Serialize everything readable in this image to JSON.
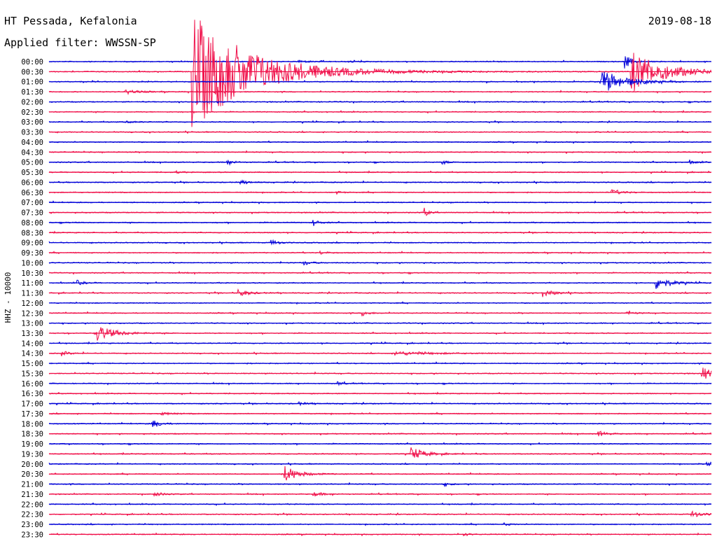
{
  "header": {
    "station": "HT Pessada, Kefalonia",
    "filter": "Applied filter: WWSSN-SP",
    "date": "2019-08-18"
  },
  "side_label": "HHZ - 10000",
  "chart_data": {
    "type": "helicorder",
    "row_labels": [
      "00:00",
      "00:30",
      "01:00",
      "01:30",
      "02:00",
      "02:30",
      "03:00",
      "03:30",
      "04:00",
      "04:30",
      "05:00",
      "05:30",
      "06:00",
      "06:30",
      "07:00",
      "07:30",
      "08:00",
      "08:30",
      "09:00",
      "09:30",
      "10:00",
      "10:30",
      "11:00",
      "11:30",
      "12:00",
      "12:30",
      "13:00",
      "13:30",
      "14:00",
      "14:30",
      "15:00",
      "15:30",
      "16:00",
      "16:30",
      "17:00",
      "17:30",
      "18:00",
      "18:30",
      "19:00",
      "19:30",
      "20:00",
      "20:30",
      "21:00",
      "21:30",
      "22:00",
      "22:30",
      "23:00",
      "23:30"
    ],
    "row_colors": [
      "#0000d8",
      "#f0104a"
    ],
    "events": [
      {
        "row": 0,
        "minute": 11.3,
        "amplitude": 0.25,
        "duration": 0.8
      },
      {
        "row": 0,
        "minute": 13.6,
        "amplitude": 0.15,
        "duration": 0.6
      },
      {
        "row": 0,
        "minute": 26.1,
        "amplitude": 1.4,
        "duration": 0.5
      },
      {
        "row": 1,
        "minute": 6.5,
        "amplitude": 12.0,
        "duration": 4.5
      },
      {
        "row": 1,
        "minute": 26.4,
        "amplitude": 4.2,
        "duration": 2.5
      },
      {
        "row": 2,
        "minute": 25.0,
        "amplitude": 2.5,
        "duration": 1.8
      },
      {
        "row": 3,
        "minute": 3.5,
        "amplitude": 0.35,
        "duration": 1.0
      },
      {
        "row": 3,
        "minute": 7.5,
        "amplitude": 0.12,
        "duration": 0.5
      },
      {
        "row": 6,
        "minute": 3.5,
        "amplitude": 0.15,
        "duration": 0.8
      },
      {
        "row": 10,
        "minute": 8.1,
        "amplitude": 0.45,
        "duration": 0.5
      },
      {
        "row": 10,
        "minute": 17.8,
        "amplitude": 0.35,
        "duration": 0.5
      },
      {
        "row": 10,
        "minute": 29.0,
        "amplitude": 0.35,
        "duration": 0.5
      },
      {
        "row": 11,
        "minute": 5.7,
        "amplitude": 0.3,
        "duration": 0.4
      },
      {
        "row": 12,
        "minute": 8.7,
        "amplitude": 0.35,
        "duration": 0.6
      },
      {
        "row": 13,
        "minute": 13.0,
        "amplitude": 0.3,
        "duration": 0.4
      },
      {
        "row": 13,
        "minute": 25.5,
        "amplitude": 0.5,
        "duration": 0.8
      },
      {
        "row": 15,
        "minute": 17.0,
        "amplitude": 0.9,
        "duration": 0.3
      },
      {
        "row": 16,
        "minute": 12.0,
        "amplitude": 0.6,
        "duration": 0.4
      },
      {
        "row": 18,
        "minute": 10.1,
        "amplitude": 0.6,
        "duration": 0.5
      },
      {
        "row": 19,
        "minute": 12.3,
        "amplitude": 0.3,
        "duration": 0.5
      },
      {
        "row": 20,
        "minute": 11.5,
        "amplitude": 0.45,
        "duration": 0.6
      },
      {
        "row": 22,
        "minute": 1.3,
        "amplitude": 0.45,
        "duration": 0.5
      },
      {
        "row": 22,
        "minute": 27.5,
        "amplitude": 1.4,
        "duration": 1.0
      },
      {
        "row": 23,
        "minute": 8.6,
        "amplitude": 0.7,
        "duration": 0.8
      },
      {
        "row": 23,
        "minute": 22.4,
        "amplitude": 0.75,
        "duration": 0.8
      },
      {
        "row": 25,
        "minute": 14.2,
        "amplitude": 0.5,
        "duration": 0.5
      },
      {
        "row": 25,
        "minute": 26.2,
        "amplitude": 0.3,
        "duration": 0.6
      },
      {
        "row": 27,
        "minute": 2.2,
        "amplitude": 1.6,
        "duration": 1.3
      },
      {
        "row": 29,
        "minute": 0.6,
        "amplitude": 0.5,
        "duration": 0.5
      },
      {
        "row": 29,
        "minute": 15.7,
        "amplitude": 0.4,
        "duration": 2.5
      },
      {
        "row": 31,
        "minute": 29.6,
        "amplitude": 1.4,
        "duration": 0.7
      },
      {
        "row": 32,
        "minute": 13.1,
        "amplitude": 0.35,
        "duration": 0.4
      },
      {
        "row": 34,
        "minute": 11.3,
        "amplitude": 0.3,
        "duration": 0.6
      },
      {
        "row": 35,
        "minute": 5.1,
        "amplitude": 0.25,
        "duration": 0.8
      },
      {
        "row": 36,
        "minute": 4.7,
        "amplitude": 0.85,
        "duration": 0.6
      },
      {
        "row": 37,
        "minute": 24.9,
        "amplitude": 0.55,
        "duration": 0.6
      },
      {
        "row": 39,
        "minute": 16.4,
        "amplitude": 1.3,
        "duration": 1.0
      },
      {
        "row": 40,
        "minute": 29.8,
        "amplitude": 0.55,
        "duration": 0.5
      },
      {
        "row": 41,
        "minute": 10.7,
        "amplitude": 1.6,
        "duration": 1.0
      },
      {
        "row": 42,
        "minute": 17.9,
        "amplitude": 0.4,
        "duration": 0.4
      },
      {
        "row": 43,
        "minute": 4.8,
        "amplitude": 0.45,
        "duration": 0.6
      },
      {
        "row": 43,
        "minute": 12.0,
        "amplitude": 0.4,
        "duration": 0.8
      },
      {
        "row": 45,
        "minute": 29.1,
        "amplitude": 0.7,
        "duration": 0.8
      },
      {
        "row": 46,
        "minute": 20.6,
        "amplitude": 0.25,
        "duration": 0.5
      },
      {
        "row": 47,
        "minute": 18.8,
        "amplitude": 0.3,
        "duration": 0.4
      }
    ]
  }
}
